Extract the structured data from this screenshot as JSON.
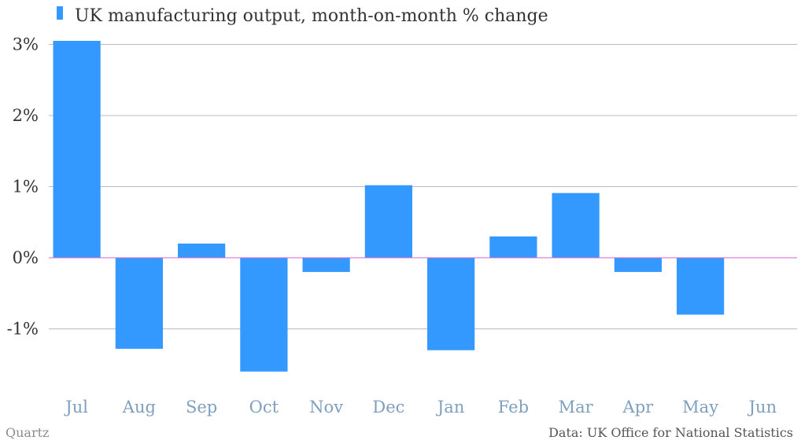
{
  "chart_data": {
    "type": "bar",
    "categories": [
      "Jul",
      "Aug",
      "Sep",
      "Oct",
      "Nov",
      "Dec",
      "Jan",
      "Feb",
      "Mar",
      "Apr",
      "May",
      "Jun"
    ],
    "series": [
      {
        "name": "UK manufacturing output, month-on-month % change",
        "values": [
          3.05,
          -1.28,
          0.2,
          -1.6,
          -0.2,
          1.02,
          -1.3,
          0.3,
          0.91,
          -0.2,
          -0.8,
          null
        ],
        "color": "#3399ff"
      }
    ],
    "yticks": [
      -1,
      0,
      1,
      2,
      3
    ],
    "ytick_labels": [
      "-1%",
      "0%",
      "1%",
      "2%",
      "3%"
    ],
    "ylim": [
      -1.9,
      3.3
    ],
    "grid": true,
    "legend": "top-left",
    "zero_line_color": "#cc66cc",
    "grid_color": "#b9b9c9"
  },
  "footer": {
    "source": "Quartz",
    "credit": "Data: UK Office for National Statistics"
  }
}
